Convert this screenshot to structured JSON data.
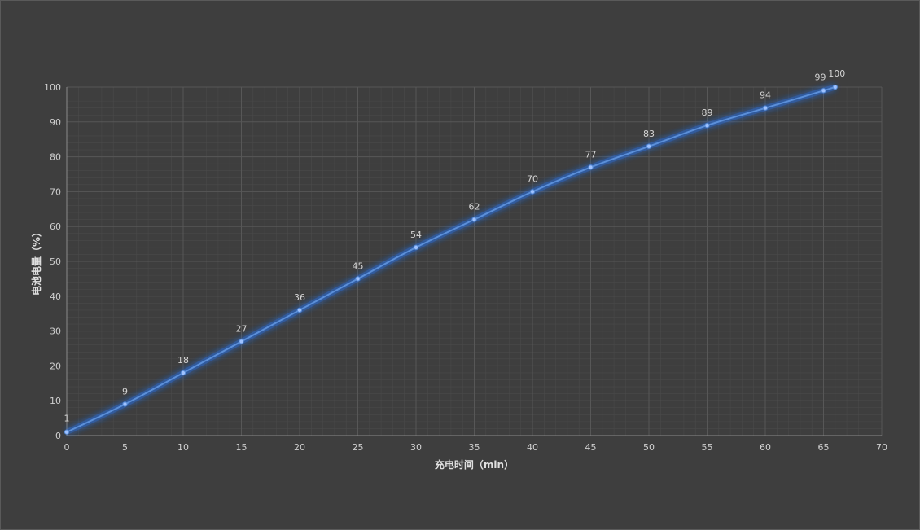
{
  "chart_data": {
    "type": "line",
    "title": "",
    "xlabel": "充电时间（min）",
    "ylabel": "电池电量（%）",
    "xlim": [
      0,
      70
    ],
    "ylim": [
      0,
      100
    ],
    "x_ticks": [
      0,
      5,
      10,
      15,
      20,
      25,
      30,
      35,
      40,
      45,
      50,
      55,
      60,
      65,
      70
    ],
    "y_ticks": [
      0,
      10,
      20,
      30,
      40,
      50,
      60,
      70,
      80,
      90,
      100
    ],
    "grid": true,
    "minor_grid": true,
    "legend": "none",
    "colors": {
      "background": "#3e3e3e",
      "series": "#5b8fd9",
      "glow": "#2f6fe0",
      "grid_major": "#575757",
      "grid_minor": "#4a4a4a",
      "tick_text": "#cfcfcf"
    },
    "series": [
      {
        "x": [
          0,
          5,
          10,
          15,
          20,
          25,
          30,
          35,
          40,
          45,
          50,
          55,
          60,
          65,
          66
        ],
        "values": [
          1,
          9,
          18,
          27,
          36,
          45,
          54,
          62,
          70,
          77,
          83,
          89,
          94,
          99,
          100
        ],
        "data_labels": [
          "1",
          "9",
          "18",
          "27",
          "36",
          "45",
          "54",
          "62",
          "70",
          "77",
          "83",
          "89",
          "94",
          "99",
          "100"
        ]
      }
    ]
  }
}
